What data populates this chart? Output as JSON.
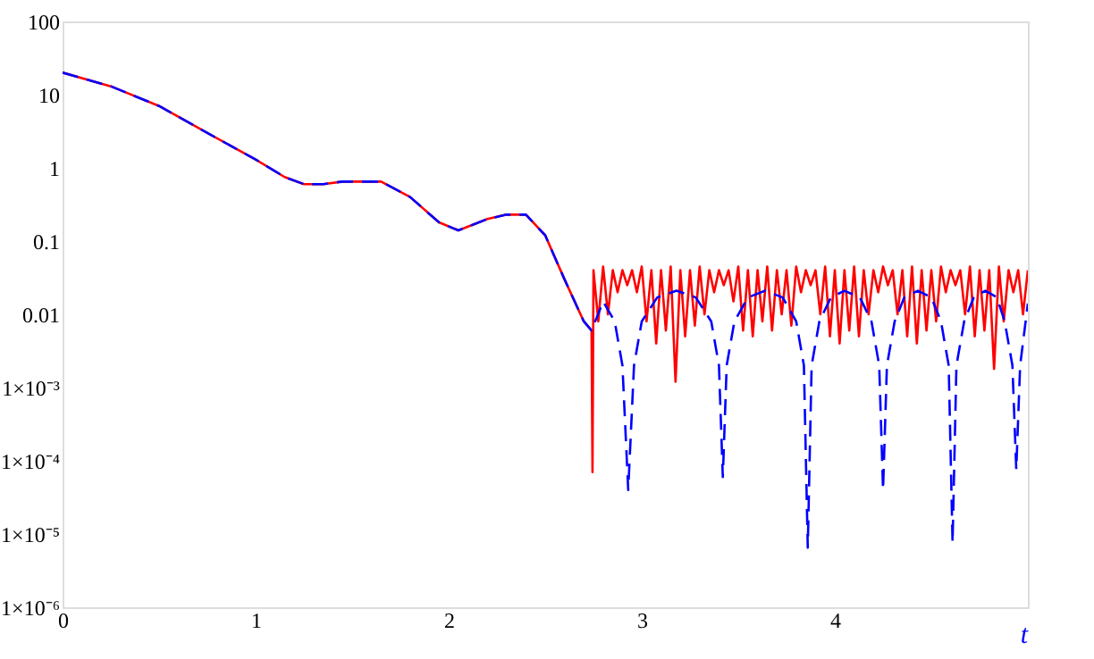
{
  "chart_data": {
    "type": "line",
    "xlabel": "t",
    "log": "y",
    "grid": false,
    "xlim": [
      0,
      5
    ],
    "xticks": [
      0,
      1,
      2,
      3,
      4
    ],
    "ylim": [
      1e-06,
      100
    ],
    "yticks": [
      {
        "value": 1e-06,
        "label": "1×10⁻⁶"
      },
      {
        "value": 1e-05,
        "label": "1×10⁻⁵"
      },
      {
        "value": 0.0001,
        "label": "1×10⁻⁴"
      },
      {
        "value": 0.001,
        "label": "1×10⁻³"
      },
      0.01,
      0.1,
      1,
      10,
      100
    ],
    "series": [
      {
        "color": "#ff0000",
        "line_style": "solid",
        "x": [
          0,
          0.25,
          0.5,
          0.75,
          1.0,
          1.15,
          1.25,
          1.35,
          1.45,
          1.65,
          1.8,
          1.95,
          2.05,
          2.2,
          2.3,
          2.4,
          2.5,
          2.6,
          2.7,
          2.74,
          2.745,
          2.75,
          2.775,
          2.8,
          2.825,
          2.85,
          2.875,
          2.9,
          2.925,
          2.95,
          2.975,
          3.0,
          3.025,
          3.05,
          3.075,
          3.1,
          3.125,
          3.15,
          3.175,
          3.2,
          3.225,
          3.25,
          3.275,
          3.3,
          3.325,
          3.35,
          3.375,
          3.4,
          3.425,
          3.45,
          3.475,
          3.5,
          3.525,
          3.55,
          3.575,
          3.6,
          3.625,
          3.65,
          3.675,
          3.7,
          3.725,
          3.75,
          3.775,
          3.8,
          3.825,
          3.85,
          3.875,
          3.9,
          3.925,
          3.95,
          3.975,
          4.0,
          4.025,
          4.05,
          4.075,
          4.1,
          4.125,
          4.15,
          4.175,
          4.2,
          4.225,
          4.25,
          4.275,
          4.3,
          4.325,
          4.35,
          4.375,
          4.4,
          4.425,
          4.45,
          4.475,
          4.5,
          4.525,
          4.55,
          4.575,
          4.6,
          4.625,
          4.65,
          4.675,
          4.7,
          4.725,
          4.75,
          4.775,
          4.8,
          4.825,
          4.85,
          4.875,
          4.9,
          4.925,
          4.95,
          4.975,
          5.0
        ],
        "values": [
          20,
          13,
          7,
          3,
          1.3,
          0.75,
          0.6,
          0.6,
          0.65,
          0.65,
          0.4,
          0.18,
          0.14,
          0.2,
          0.23,
          0.23,
          0.12,
          0.03,
          0.008,
          0.006,
          7e-05,
          0.04,
          0.008,
          0.045,
          0.01,
          0.04,
          0.02,
          0.04,
          0.025,
          0.04,
          0.02,
          0.045,
          0.008,
          0.04,
          0.004,
          0.04,
          0.006,
          0.045,
          0.0012,
          0.04,
          0.005,
          0.04,
          0.007,
          0.045,
          0.01,
          0.04,
          0.02,
          0.04,
          0.025,
          0.04,
          0.015,
          0.045,
          0.006,
          0.04,
          0.005,
          0.04,
          0.008,
          0.045,
          0.006,
          0.04,
          0.01,
          0.04,
          0.007,
          0.045,
          0.02,
          0.04,
          0.025,
          0.04,
          0.01,
          0.045,
          0.005,
          0.04,
          0.004,
          0.04,
          0.006,
          0.045,
          0.005,
          0.04,
          0.01,
          0.04,
          0.02,
          0.045,
          0.025,
          0.04,
          0.01,
          0.04,
          0.005,
          0.045,
          0.004,
          0.04,
          0.006,
          0.04,
          0.008,
          0.045,
          0.02,
          0.04,
          0.025,
          0.04,
          0.01,
          0.045,
          0.005,
          0.04,
          0.006,
          0.04,
          0.0018,
          0.045,
          0.008,
          0.04,
          0.02,
          0.04,
          0.01,
          0.04
        ]
      },
      {
        "color": "#0000ff",
        "line_style": "dashed",
        "x": [
          0,
          0.25,
          0.5,
          0.75,
          1.0,
          1.15,
          1.25,
          1.35,
          1.45,
          1.65,
          1.8,
          1.95,
          2.05,
          2.2,
          2.3,
          2.4,
          2.5,
          2.6,
          2.7,
          2.74,
          2.8,
          2.86,
          2.9,
          2.93,
          2.96,
          3.0,
          3.08,
          3.18,
          3.28,
          3.36,
          3.4,
          3.42,
          3.44,
          3.48,
          3.55,
          3.64,
          3.73,
          3.8,
          3.84,
          3.86,
          3.88,
          3.92,
          3.98,
          4.05,
          4.13,
          4.19,
          4.23,
          4.25,
          4.27,
          4.31,
          4.36,
          4.43,
          4.5,
          4.55,
          4.59,
          4.61,
          4.63,
          4.67,
          4.72,
          4.78,
          4.84,
          4.88,
          4.92,
          4.94,
          4.96,
          5.0
        ],
        "values": [
          20,
          13,
          7,
          3,
          1.3,
          0.75,
          0.6,
          0.6,
          0.65,
          0.65,
          0.4,
          0.18,
          0.14,
          0.2,
          0.23,
          0.23,
          0.12,
          0.03,
          0.008,
          0.006,
          0.015,
          0.008,
          0.002,
          4e-05,
          0.002,
          0.008,
          0.017,
          0.021,
          0.017,
          0.008,
          0.002,
          6e-05,
          0.002,
          0.008,
          0.017,
          0.021,
          0.017,
          0.008,
          0.002,
          6.5e-06,
          0.002,
          0.008,
          0.017,
          0.021,
          0.017,
          0.008,
          0.002,
          4e-05,
          0.002,
          0.008,
          0.017,
          0.021,
          0.017,
          0.008,
          0.002,
          7.6e-06,
          0.002,
          0.008,
          0.017,
          0.021,
          0.017,
          0.008,
          0.002,
          7.6e-05,
          0.002,
          0.014
        ]
      }
    ]
  }
}
